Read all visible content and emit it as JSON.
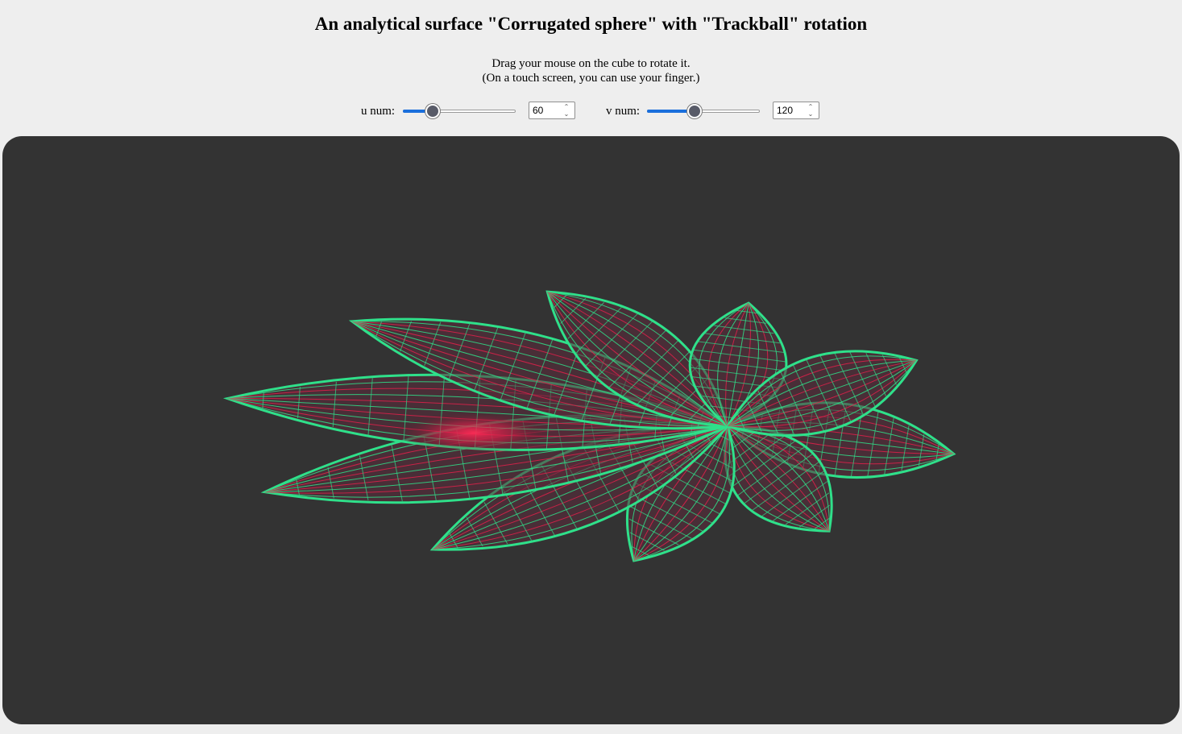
{
  "page": {
    "title": "An analytical surface \"Corrugated sphere\" with \"Trackball\" rotation",
    "instruction_line1": "Drag your mouse on the cube to rotate it.",
    "instruction_line2": "(On a touch screen, you can use your finger.)"
  },
  "controls": {
    "u": {
      "label": "u num:",
      "value": "60",
      "fraction": 0.23
    },
    "v": {
      "label": "v num:",
      "value": "120",
      "fraction": 0.41
    }
  },
  "surface": {
    "name": "Corrugated sphere",
    "rotation": "Trackball",
    "petals": 10,
    "background_color": "#333333",
    "mesh_color": "#2fe08a",
    "inner_color": "#e0204a"
  },
  "icons": {
    "spin_up": "chevron-up-icon",
    "spin_down": "chevron-down-icon"
  }
}
